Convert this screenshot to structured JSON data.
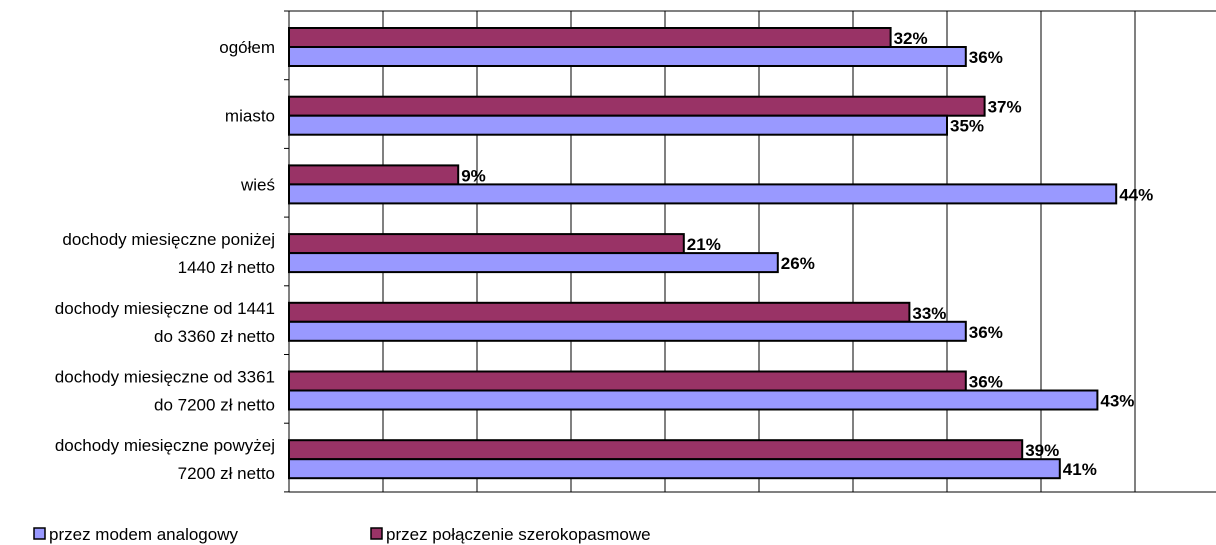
{
  "chart_data": {
    "type": "bar",
    "orientation": "horizontal",
    "categories": [
      [
        "ogółem"
      ],
      [
        "miasto"
      ],
      [
        "wieś"
      ],
      [
        "dochody miesięczne poniżej",
        "1440 zł netto"
      ],
      [
        "dochody miesięczne od 1441",
        "do 3360 zł netto"
      ],
      [
        "dochody miesięczne od 3361",
        "do 7200 zł netto"
      ],
      [
        "dochody miesięczne powyżej",
        "7200 zł netto"
      ]
    ],
    "series": [
      {
        "name": "przez połączenie szerokopasmowe",
        "color": "#993366",
        "values": [
          32,
          37,
          9,
          21,
          33,
          36,
          39
        ],
        "labels": [
          "32%",
          "37%",
          "9%",
          "21%",
          "33%",
          "36%",
          "39%"
        ]
      },
      {
        "name": "przez modem analogowy",
        "color": "#9999ff",
        "values": [
          36,
          35,
          44,
          26,
          36,
          43,
          41
        ],
        "labels": [
          "36%",
          "35%",
          "44%",
          "26%",
          "36%",
          "43%",
          "41%"
        ]
      }
    ],
    "xlim": [
      0,
      50
    ],
    "x_gridline_step": 5,
    "grid": true,
    "tick_labels_shown": false,
    "legend_position": "bottom",
    "legend_order": [
      "przez modem analogowy",
      "przez połączenie szerokopasmowe"
    ]
  }
}
